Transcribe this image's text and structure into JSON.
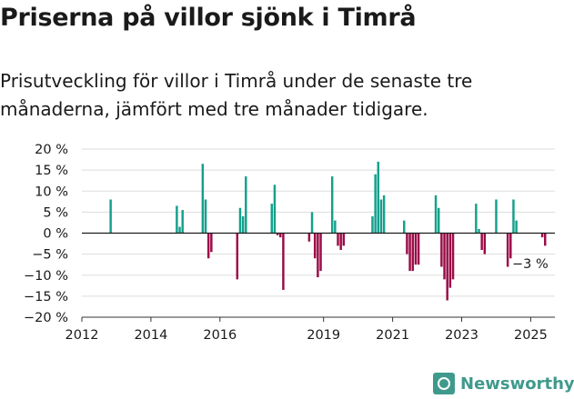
{
  "title": "Priserna på villor sjönk i Timrå",
  "subtitle": "Prisutveckling för villor i Timrå under de senaste tre månaderna, jämfört med tre månader tidigare.",
  "brand": {
    "name": "Newsworthy",
    "icon": "newsworthy-logo-icon"
  },
  "colors": {
    "positive": "#16a08c",
    "negative": "#9b0c48",
    "grid": "#dddddd",
    "zero_line": "#1a1a1a"
  },
  "chart_data": {
    "type": "bar",
    "title": "",
    "xlabel": "",
    "ylabel": "",
    "x_ticks": [
      2012,
      2014,
      2016,
      2019,
      2021,
      2023,
      2025
    ],
    "y_ticks": [
      -20,
      -15,
      -10,
      -5,
      0,
      5,
      10,
      15,
      20
    ],
    "y_tick_labels": [
      "−20 %",
      "−15 %",
      "−10 %",
      "−5 %",
      "0 %",
      "5 %",
      "10 %",
      "15 %",
      "20 %"
    ],
    "xlim": [
      2012.0,
      2025.7
    ],
    "ylim": [
      -20,
      20
    ],
    "grid": true,
    "annotation": "−3 %",
    "series": [
      {
        "x": [
          "2012-11",
          "2014-10",
          "2014-11",
          "2014-12",
          "2015-07",
          "2015-08",
          "2015-09",
          "2015-10",
          "2016-07",
          "2016-08",
          "2016-09",
          "2016-10",
          "2017-07",
          "2017-08",
          "2017-09",
          "2017-10",
          "2017-11",
          "2018-08",
          "2018-09",
          "2018-10",
          "2018-11",
          "2018-12",
          "2019-04",
          "2019-05",
          "2019-06",
          "2019-07",
          "2019-08",
          "2020-06",
          "2020-07",
          "2020-08",
          "2020-09",
          "2020-10",
          "2021-05",
          "2021-06",
          "2021-07",
          "2021-08",
          "2021-09",
          "2021-10",
          "2022-04",
          "2022-05",
          "2022-06",
          "2022-07",
          "2022-08",
          "2022-09",
          "2022-10",
          "2022-11",
          "2023-06",
          "2023-07",
          "2023-08",
          "2023-09",
          "2023-10",
          "2024-01",
          "2024-04",
          "2024-05",
          "2024-06",
          "2024-07",
          "2024-08",
          "2025-05",
          "2025-06"
        ],
        "values": [
          8,
          6.5,
          1.5,
          5.5,
          16.5,
          8,
          -6,
          -4.5,
          -11,
          6,
          4,
          13.5,
          7,
          11.5,
          -0.5,
          -1,
          -13.5,
          -2,
          5,
          -6,
          -10.5,
          -9,
          13.5,
          3,
          -3,
          -4,
          -3,
          4,
          14,
          17,
          8,
          9,
          3,
          -5,
          -9,
          -9,
          -7.5,
          -7.5,
          9,
          6,
          -8,
          -11,
          -16,
          -13,
          -11,
          0,
          7,
          1,
          -4,
          -5,
          0,
          8,
          0,
          -8,
          -6,
          8,
          3,
          -1,
          -3
        ]
      }
    ]
  }
}
